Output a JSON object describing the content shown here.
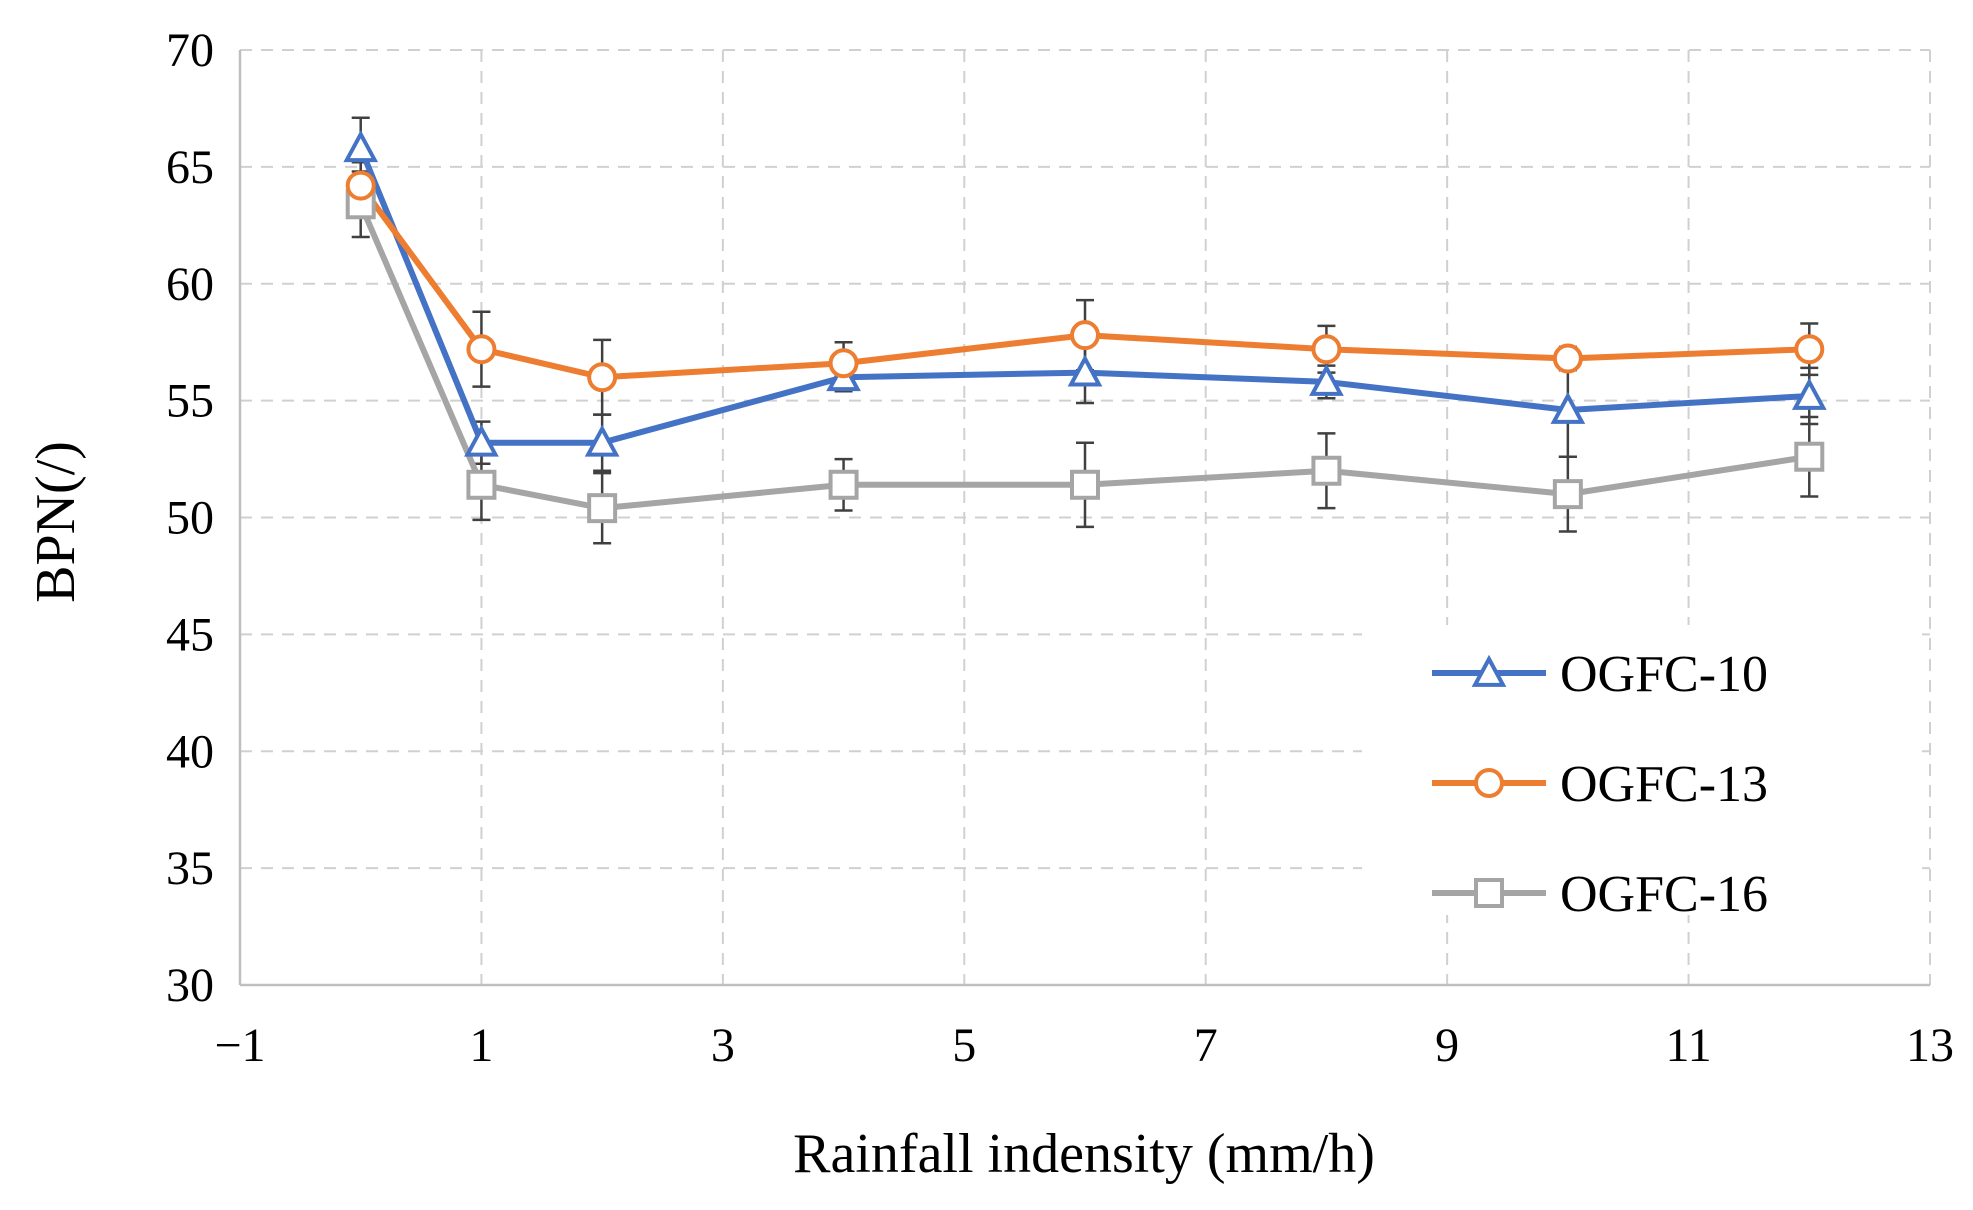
{
  "chart_data": {
    "type": "line",
    "title": "",
    "xlabel": "Rainfall indensity (mm/h)",
    "ylabel": "BPN(/)",
    "xlim": [
      -1,
      13
    ],
    "ylim": [
      30,
      70
    ],
    "x_ticks": [
      -1,
      1,
      3,
      5,
      7,
      9,
      11,
      13
    ],
    "x_tick_labels": [
      "−1",
      "1",
      "3",
      "5",
      "7",
      "9",
      "11",
      "13"
    ],
    "y_ticks": [
      30,
      35,
      40,
      45,
      50,
      55,
      60,
      65,
      70
    ],
    "y_tick_labels": [
      "30",
      "35",
      "40",
      "45",
      "50",
      "55",
      "60",
      "65",
      "70"
    ],
    "grid": true,
    "legend_position": "bottom-right",
    "x": [
      0,
      1,
      2,
      4,
      6,
      8,
      10,
      12
    ],
    "series": [
      {
        "name": "OGFC-10",
        "color": "#4472c4",
        "marker": "triangle",
        "values": [
          65.8,
          53.2,
          53.2,
          56.0,
          56.2,
          55.8,
          54.6,
          55.2
        ],
        "errors": [
          1.3,
          0.9,
          1.2,
          0.6,
          1.3,
          0.7,
          2.0,
          1.2
        ]
      },
      {
        "name": "OGFC-13",
        "color": "#ed7d31",
        "marker": "circle",
        "values": [
          64.2,
          57.2,
          56.0,
          56.6,
          57.8,
          57.2,
          56.8,
          57.2
        ],
        "errors": [
          1.0,
          1.6,
          1.6,
          0.9,
          1.5,
          1.0,
          0.5,
          1.1
        ]
      },
      {
        "name": "OGFC-16",
        "color": "#a5a5a5",
        "marker": "square",
        "values": [
          63.4,
          51.4,
          50.4,
          51.4,
          51.4,
          52.0,
          51.0,
          52.6
        ],
        "errors": [
          1.4,
          1.5,
          1.5,
          1.1,
          1.8,
          1.6,
          1.6,
          1.7
        ]
      }
    ]
  }
}
